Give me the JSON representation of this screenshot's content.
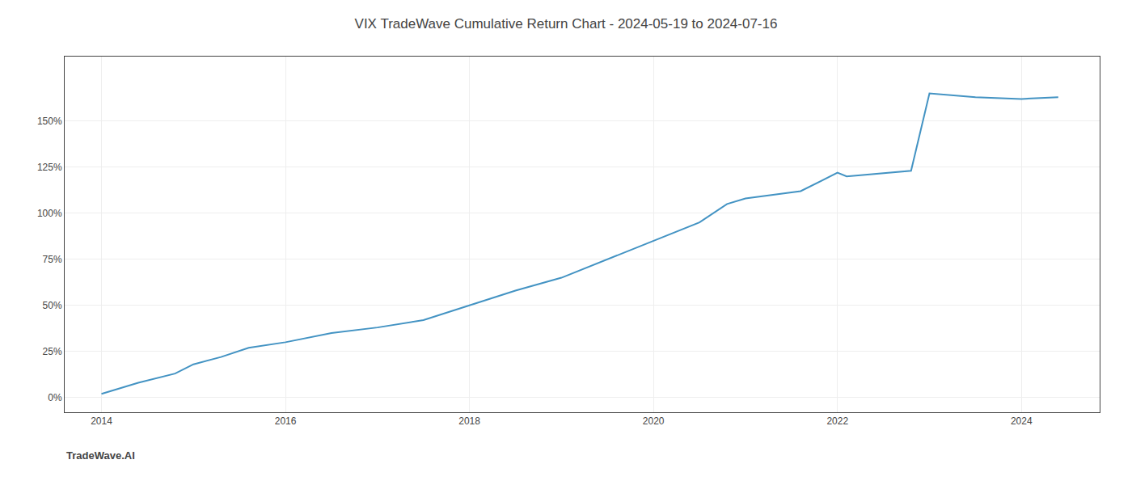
{
  "chart_data": {
    "type": "line",
    "title": "VIX TradeWave Cumulative Return Chart - 2024-05-19 to 2024-07-16",
    "annotations": [
      {
        "text": "TradeWave.AI"
      }
    ],
    "x": [
      2014.0,
      2014.4,
      2014.8,
      2015.0,
      2015.3,
      2015.6,
      2016.0,
      2016.5,
      2017.0,
      2017.5,
      2018.0,
      2018.5,
      2019.0,
      2019.5,
      2020.0,
      2020.5,
      2020.8,
      2021.0,
      2021.3,
      2021.6,
      2022.0,
      2022.1,
      2022.8,
      2023.0,
      2023.5,
      2024.0,
      2024.4
    ],
    "values": [
      2,
      8,
      13,
      18,
      22,
      27,
      30,
      35,
      38,
      42,
      50,
      58,
      65,
      75,
      85,
      95,
      105,
      108,
      110,
      112,
      122,
      120,
      123,
      165,
      163,
      162,
      163
    ],
    "color": "#4393c3",
    "xlim": [
      2013.6,
      2024.85
    ],
    "xticks": [
      2014,
      2016,
      2018,
      2020,
      2022,
      2024
    ],
    "ylim": [
      -8,
      185
    ],
    "yticks": [
      {
        "value": 0,
        "label": "0%"
      },
      {
        "value": 25,
        "label": "25%"
      },
      {
        "value": 50,
        "label": "50%"
      },
      {
        "value": 75,
        "label": "75%"
      },
      {
        "value": 100,
        "label": "100%"
      },
      {
        "value": 125,
        "label": "125%"
      },
      {
        "value": 150,
        "label": "150%"
      }
    ],
    "grid": true
  }
}
